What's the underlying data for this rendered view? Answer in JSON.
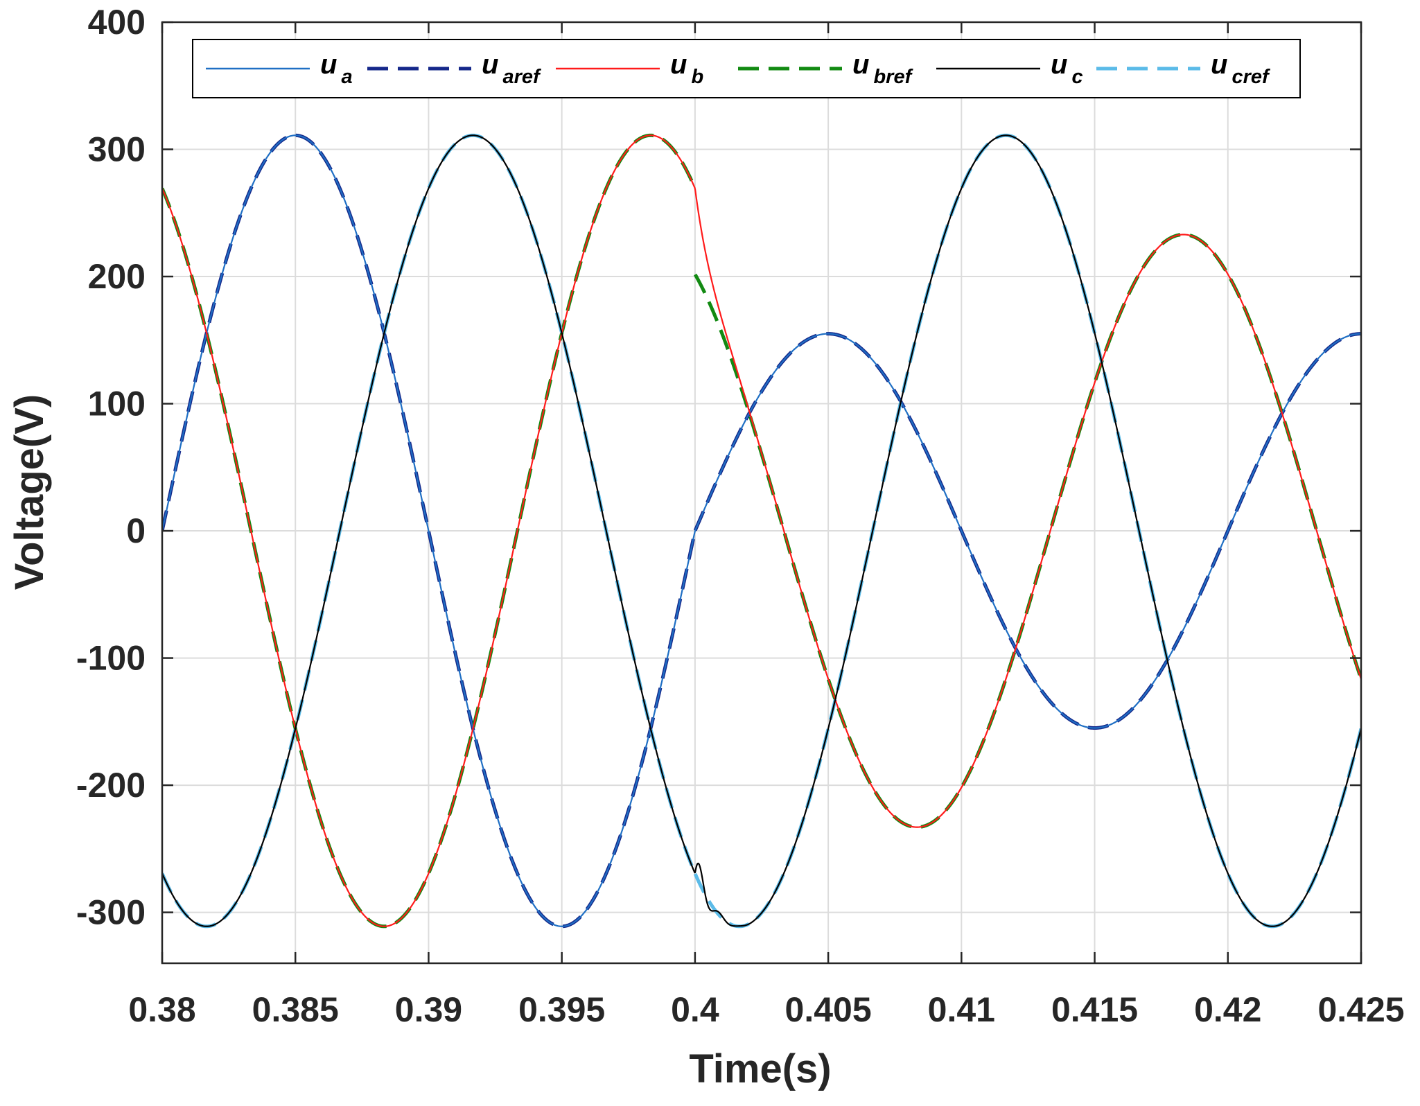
{
  "chart_data": {
    "type": "line",
    "xlabel": "Time(s)",
    "ylabel": "Voltage(V)",
    "xlim": [
      0.38,
      0.425
    ],
    "ylim": [
      -340,
      400
    ],
    "xticks": [
      0.38,
      0.385,
      0.39,
      0.395,
      0.4,
      0.405,
      0.41,
      0.415,
      0.42,
      0.425
    ],
    "xtick_labels": [
      "0.38",
      "0.385",
      "0.39",
      "0.395",
      "0.4",
      "0.405",
      "0.41",
      "0.415",
      "0.42",
      "0.425"
    ],
    "yticks": [
      -300,
      -200,
      -100,
      0,
      100,
      200,
      300,
      400
    ],
    "ytick_labels": [
      "-300",
      "-200",
      "-100",
      "0",
      "100",
      "200",
      "300",
      "400"
    ],
    "grid": true,
    "legend_position": "top",
    "model": {
      "frequency_hz": 50,
      "fault_time_s": 0.4,
      "pre_fault_amplitudes": {
        "a": 311,
        "b": 311,
        "c": 311
      },
      "post_fault_amplitudes": {
        "a": 155,
        "b": 233,
        "c": 311
      },
      "phase_offsets_deg": {
        "a": 0,
        "b": -240,
        "c": -120
      }
    },
    "series": [
      {
        "key": "ua",
        "name": "u",
        "subscript": "a",
        "color": "#1f6fc4",
        "style": "solid",
        "role": "measured",
        "phase": "a"
      },
      {
        "key": "uaref",
        "name": "u",
        "subscript": "aref",
        "color": "#15288a",
        "style": "dashed",
        "role": "reference",
        "phase": "a"
      },
      {
        "key": "ub",
        "name": "u",
        "subscript": "b",
        "color": "#ff1a1a",
        "style": "solid",
        "role": "measured",
        "phase": "b"
      },
      {
        "key": "ubref",
        "name": "u",
        "subscript": "bref",
        "color": "#128a12",
        "style": "dashed",
        "role": "reference",
        "phase": "b"
      },
      {
        "key": "uc",
        "name": "u",
        "subscript": "c",
        "color": "#000000",
        "style": "solid",
        "role": "measured",
        "phase": "c"
      },
      {
        "key": "ucref",
        "name": "u",
        "subscript": "cref",
        "color": "#5bbbe8",
        "style": "dashed",
        "role": "reference",
        "phase": "c"
      }
    ]
  }
}
